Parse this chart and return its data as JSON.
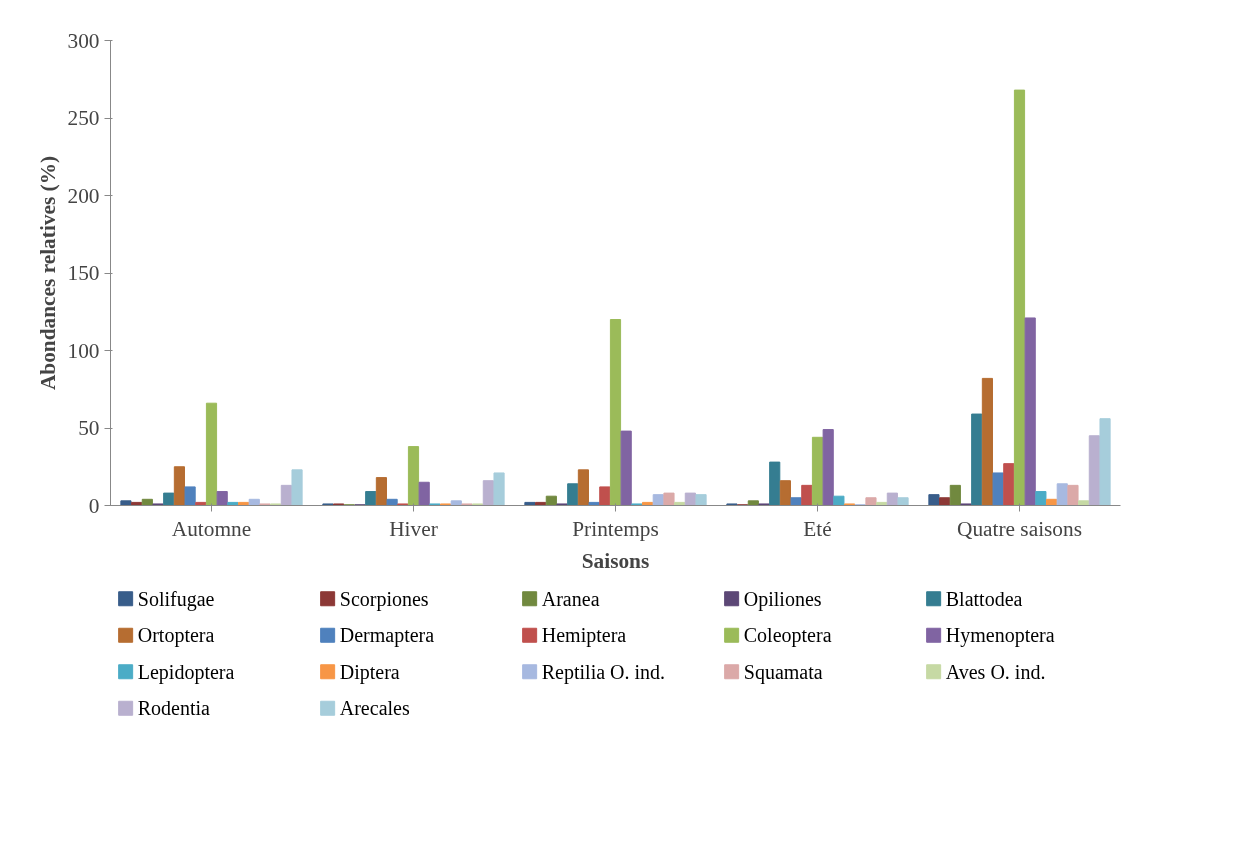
{
  "chart_data": {
    "type": "bar",
    "xlabel": "Saisons",
    "ylabel": "Abondances relatives (%)",
    "categories": [
      "Automne",
      "Hiver",
      "Printemps",
      "Eté",
      "Quatre saisons"
    ],
    "ylim": [
      0,
      300
    ],
    "yticks": [
      0,
      50,
      100,
      150,
      200,
      250,
      300
    ],
    "grid": false,
    "legend": "bottom",
    "series": [
      {
        "name": "Solifugae",
        "color": "#385d8a",
        "values": [
          3,
          1,
          2,
          1,
          7
        ]
      },
      {
        "name": "Scorpiones",
        "color": "#8c3836",
        "values": [
          2,
          1,
          2,
          0.5,
          5
        ]
      },
      {
        "name": "Aranea",
        "color": "#71893f",
        "values": [
          4,
          0.5,
          6,
          3,
          13
        ]
      },
      {
        "name": "Opiliones",
        "color": "#5c4776",
        "values": [
          1,
          0.5,
          1,
          1,
          1
        ]
      },
      {
        "name": "Blattodea",
        "color": "#357d91",
        "values": [
          8,
          9,
          14,
          28,
          59
        ]
      },
      {
        "name": "Ortoptera",
        "color": "#b66d31",
        "values": [
          25,
          18,
          23,
          16,
          82
        ]
      },
      {
        "name": "Dermaptera",
        "color": "#4f81bd",
        "values": [
          12,
          4,
          2,
          5,
          21
        ]
      },
      {
        "name": "Hemiptera",
        "color": "#c0504d",
        "values": [
          2,
          1,
          12,
          13,
          27
        ]
      },
      {
        "name": "Coleoptera",
        "color": "#9bbb59",
        "values": [
          66,
          38,
          120,
          44,
          268
        ]
      },
      {
        "name": "Hymenoptera",
        "color": "#8064a2",
        "values": [
          9,
          15,
          48,
          49,
          121
        ]
      },
      {
        "name": "Lepidoptera",
        "color": "#4bacc6",
        "values": [
          2,
          1,
          1,
          6,
          9
        ]
      },
      {
        "name": "Diptera",
        "color": "#f79646",
        "values": [
          2,
          1,
          2,
          1,
          4
        ]
      },
      {
        "name": "Reptilia O. ind.",
        "color": "#a7b9e0",
        "values": [
          4,
          3,
          7,
          0.5,
          14
        ]
      },
      {
        "name": "Squamata",
        "color": "#dba9a8",
        "values": [
          1,
          1,
          8,
          5,
          13
        ]
      },
      {
        "name": "Aves O. ind.",
        "color": "#c6d9a4",
        "values": [
          1,
          1,
          2,
          2,
          3
        ]
      },
      {
        "name": "Rodentia",
        "color": "#b9b0cf",
        "values": [
          13,
          16,
          8,
          8,
          45
        ]
      },
      {
        "name": "Arecales",
        "color": "#a6cddb",
        "values": [
          23,
          21,
          7,
          5,
          56
        ]
      }
    ]
  }
}
